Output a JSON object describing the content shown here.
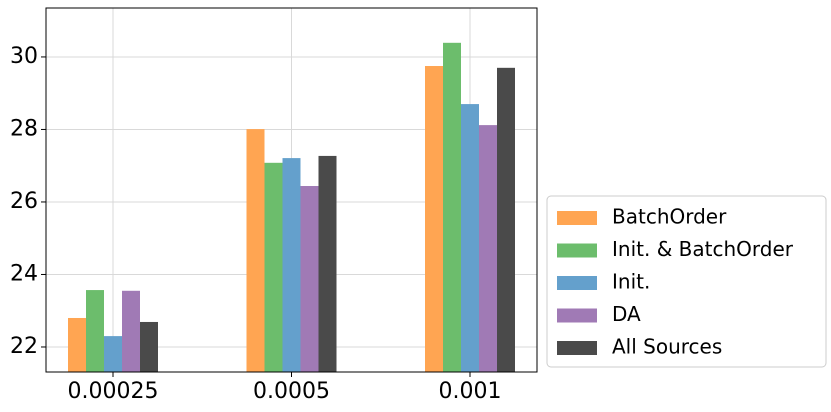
{
  "chart_data": {
    "type": "bar",
    "categories": [
      "0.00025",
      "0.0005",
      "0.001"
    ],
    "series": [
      {
        "name": "BatchOrder",
        "color": "#ffa552",
        "values": [
          22.8,
          28.01,
          29.75
        ]
      },
      {
        "name": "Init. & BatchOrder",
        "color": "#6cbd6c",
        "values": [
          23.57,
          27.08,
          30.39
        ]
      },
      {
        "name": "Init.",
        "color": "#64a0cc",
        "values": [
          22.3,
          27.21,
          28.7
        ]
      },
      {
        "name": "DA",
        "color": "#a07ab5",
        "values": [
          23.55,
          26.44,
          28.12
        ]
      },
      {
        "name": "All Sources",
        "color": "#4a4a4a",
        "values": [
          22.69,
          27.27,
          29.7
        ]
      }
    ],
    "ylim": [
      21.31,
      31.35
    ],
    "yticks": [
      22,
      24,
      26,
      28,
      30
    ],
    "grid": true,
    "legend": "lower right outside"
  }
}
